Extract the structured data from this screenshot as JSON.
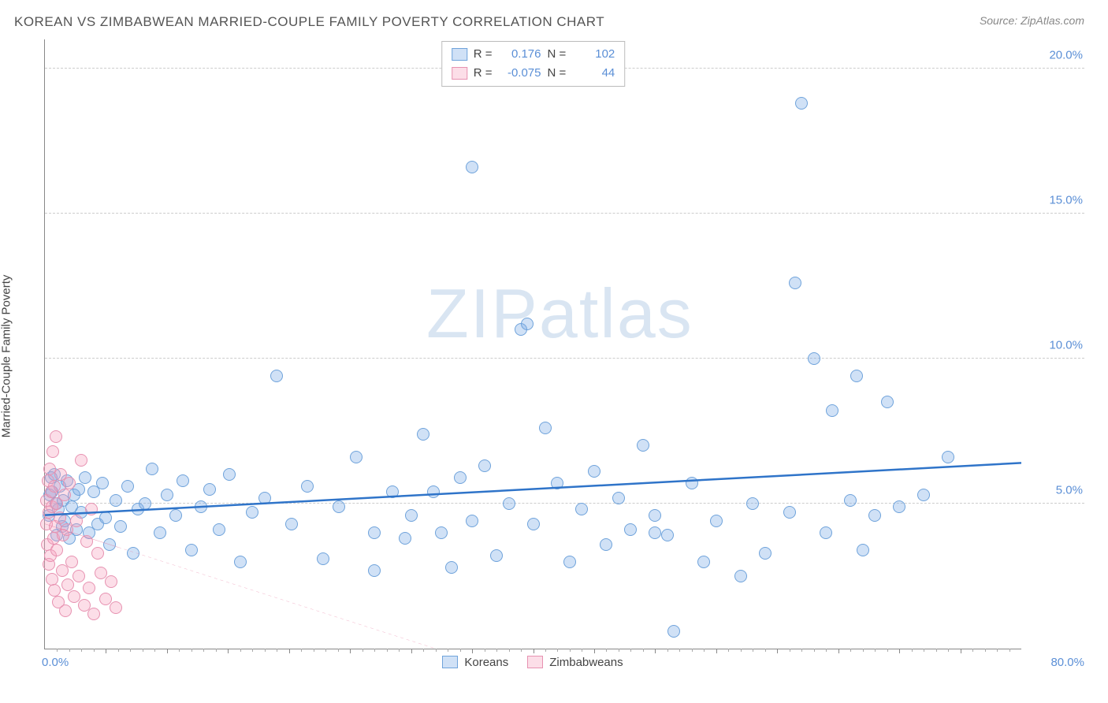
{
  "header": {
    "title": "KOREAN VS ZIMBABWEAN MARRIED-COUPLE FAMILY POVERTY CORRELATION CHART",
    "source_prefix": "Source: ",
    "source": "ZipAtlas.com"
  },
  "chart": {
    "type": "scatter",
    "ylabel": "Married-Couple Family Poverty",
    "xlim": [
      0,
      80
    ],
    "ylim": [
      0,
      21
    ],
    "x_start_label": "0.0%",
    "x_end_label": "80.0%",
    "y_ticks": [
      {
        "v": 5,
        "label": "5.0%"
      },
      {
        "v": 10,
        "label": "10.0%"
      },
      {
        "v": 15,
        "label": "15.0%"
      },
      {
        "v": 20,
        "label": "20.0%"
      }
    ],
    "x_major_step": 5,
    "x_minor_step": 1,
    "background_color": "#ffffff",
    "grid_color": "#cccccc",
    "axis_color": "#888888",
    "label_color": "#5b8fd6",
    "series": [
      {
        "name": "Koreans",
        "fill": "rgba(120,170,230,0.35)",
        "stroke": "#6fa3db",
        "line_color": "#2f74c9",
        "line_dash": "none",
        "R": "0.176",
        "N": "102",
        "regression": {
          "x1": 0,
          "y1": 4.6,
          "x2": 80,
          "y2": 6.4
        },
        "points": [
          [
            0.3,
            4.6
          ],
          [
            0.4,
            5.3
          ],
          [
            0.5,
            5.9
          ],
          [
            0.6,
            5.4
          ],
          [
            0.8,
            6.0
          ],
          [
            0.9,
            5.0
          ],
          [
            1.0,
            3.9
          ],
          [
            1.1,
            4.8
          ],
          [
            1.2,
            5.6
          ],
          [
            1.4,
            4.2
          ],
          [
            1.5,
            5.1
          ],
          [
            1.6,
            4.4
          ],
          [
            1.8,
            5.8
          ],
          [
            2.0,
            3.8
          ],
          [
            2.2,
            4.9
          ],
          [
            2.4,
            5.3
          ],
          [
            2.6,
            4.1
          ],
          [
            2.8,
            5.5
          ],
          [
            3.0,
            4.7
          ],
          [
            3.3,
            5.9
          ],
          [
            3.6,
            4.0
          ],
          [
            4.0,
            5.4
          ],
          [
            4.3,
            4.3
          ],
          [
            4.7,
            5.7
          ],
          [
            5.0,
            4.5
          ],
          [
            5.3,
            3.6
          ],
          [
            5.8,
            5.1
          ],
          [
            6.2,
            4.2
          ],
          [
            6.8,
            5.6
          ],
          [
            7.2,
            3.3
          ],
          [
            7.6,
            4.8
          ],
          [
            8.2,
            5.0
          ],
          [
            8.8,
            6.2
          ],
          [
            9.4,
            4.0
          ],
          [
            10.0,
            5.3
          ],
          [
            10.7,
            4.6
          ],
          [
            11.3,
            5.8
          ],
          [
            12.0,
            3.4
          ],
          [
            12.8,
            4.9
          ],
          [
            13.5,
            5.5
          ],
          [
            14.3,
            4.1
          ],
          [
            15.1,
            6.0
          ],
          [
            16.0,
            3.0
          ],
          [
            17.0,
            4.7
          ],
          [
            18.0,
            5.2
          ],
          [
            19.0,
            9.4
          ],
          [
            20.2,
            4.3
          ],
          [
            21.5,
            5.6
          ],
          [
            22.8,
            3.1
          ],
          [
            24.1,
            4.9
          ],
          [
            25.5,
            6.6
          ],
          [
            27.0,
            4.0
          ],
          [
            28.5,
            5.4
          ],
          [
            27.0,
            2.7
          ],
          [
            29.5,
            3.8
          ],
          [
            30.0,
            4.6
          ],
          [
            31.0,
            7.4
          ],
          [
            31.8,
            5.4
          ],
          [
            32.5,
            4.0
          ],
          [
            33.3,
            2.8
          ],
          [
            34.0,
            5.9
          ],
          [
            35.0,
            4.4
          ],
          [
            35.0,
            16.6
          ],
          [
            36.0,
            6.3
          ],
          [
            37.0,
            3.2
          ],
          [
            38.0,
            5.0
          ],
          [
            39.0,
            11.0
          ],
          [
            39.5,
            11.2
          ],
          [
            40.0,
            4.3
          ],
          [
            41.0,
            7.6
          ],
          [
            42.0,
            5.7
          ],
          [
            43.0,
            3.0
          ],
          [
            44.0,
            4.8
          ],
          [
            45.0,
            6.1
          ],
          [
            46.0,
            3.6
          ],
          [
            47.0,
            5.2
          ],
          [
            48.0,
            4.1
          ],
          [
            49.0,
            7.0
          ],
          [
            50.0,
            4.0
          ],
          [
            50.0,
            4.6
          ],
          [
            51.0,
            3.9
          ],
          [
            51.5,
            0.6
          ],
          [
            53.0,
            5.7
          ],
          [
            54.0,
            3.0
          ],
          [
            55.0,
            4.4
          ],
          [
            57.0,
            2.5
          ],
          [
            58.0,
            5.0
          ],
          [
            59.0,
            3.3
          ],
          [
            61.0,
            4.7
          ],
          [
            61.5,
            12.6
          ],
          [
            62.0,
            18.8
          ],
          [
            63.0,
            10.0
          ],
          [
            64.0,
            4.0
          ],
          [
            64.5,
            8.2
          ],
          [
            66.0,
            5.1
          ],
          [
            66.5,
            9.4
          ],
          [
            68.0,
            4.6
          ],
          [
            69.0,
            8.5
          ],
          [
            74.0,
            6.6
          ],
          [
            67.0,
            3.4
          ],
          [
            70.0,
            4.9
          ],
          [
            72.0,
            5.3
          ]
        ]
      },
      {
        "name": "Zimbabweans",
        "fill": "rgba(245,160,190,0.35)",
        "stroke": "#e792b1",
        "line_color": "#e46a94",
        "line_dash": "4,4",
        "R": "-0.075",
        "N": "44",
        "regression": {
          "x1": 0,
          "y1": 4.3,
          "x2": 32,
          "y2": 0
        },
        "regression_solid_until": 6,
        "points": [
          [
            0.1,
            4.3
          ],
          [
            0.15,
            5.1
          ],
          [
            0.2,
            3.6
          ],
          [
            0.25,
            5.8
          ],
          [
            0.3,
            2.9
          ],
          [
            0.35,
            4.7
          ],
          [
            0.4,
            6.2
          ],
          [
            0.45,
            3.2
          ],
          [
            0.5,
            5.4
          ],
          [
            0.55,
            2.4
          ],
          [
            0.6,
            4.9
          ],
          [
            0.65,
            6.8
          ],
          [
            0.7,
            3.8
          ],
          [
            0.75,
            5.6
          ],
          [
            0.8,
            2.0
          ],
          [
            0.85,
            4.2
          ],
          [
            0.9,
            7.3
          ],
          [
            0.95,
            3.4
          ],
          [
            1.0,
            5.0
          ],
          [
            1.1,
            1.6
          ],
          [
            1.2,
            4.5
          ],
          [
            1.3,
            6.0
          ],
          [
            1.4,
            2.7
          ],
          [
            1.5,
            3.9
          ],
          [
            1.6,
            5.3
          ],
          [
            1.7,
            1.3
          ],
          [
            1.8,
            4.1
          ],
          [
            1.9,
            2.2
          ],
          [
            2.0,
            5.7
          ],
          [
            2.2,
            3.0
          ],
          [
            2.4,
            1.8
          ],
          [
            2.6,
            4.4
          ],
          [
            2.8,
            2.5
          ],
          [
            3.0,
            6.5
          ],
          [
            3.2,
            1.5
          ],
          [
            3.4,
            3.7
          ],
          [
            3.6,
            2.1
          ],
          [
            3.8,
            4.8
          ],
          [
            4.0,
            1.2
          ],
          [
            4.3,
            3.3
          ],
          [
            4.6,
            2.6
          ],
          [
            5.0,
            1.7
          ],
          [
            5.4,
            2.3
          ],
          [
            5.8,
            1.4
          ]
        ]
      }
    ],
    "watermark": {
      "bold": "ZIP",
      "light": "atlas"
    }
  },
  "bottom_legend": {
    "items": [
      "Koreans",
      "Zimbabweans"
    ]
  }
}
